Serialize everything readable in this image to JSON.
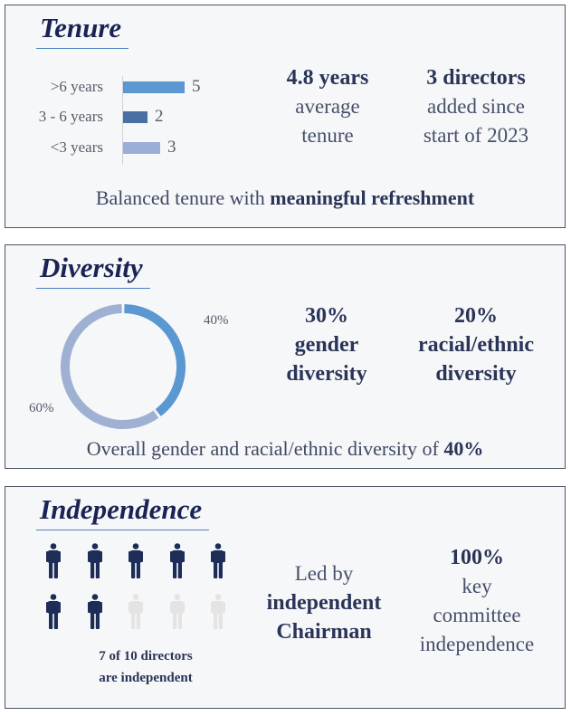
{
  "tenure": {
    "title": "Tenure",
    "chart_data": {
      "type": "bar",
      "orientation": "horizontal",
      "categories": [
        ">6 years",
        "3 - 6 years",
        "<3 years"
      ],
      "values": [
        5,
        2,
        3
      ],
      "colors": [
        "#5b97d1",
        "#4a6fa5",
        "#9aaed6"
      ]
    },
    "stat1": {
      "headline": "4.8 years",
      "line1": "average",
      "line2": "tenure"
    },
    "stat2": {
      "headline": "3 directors",
      "line1": "added since",
      "line2": "start of 2023"
    },
    "caption": {
      "text": "Balanced tenure with ",
      "bold": "meaningful refreshment"
    }
  },
  "diversity": {
    "title": "Diversity",
    "chart_data": {
      "type": "pie",
      "style": "donut",
      "labels": [
        "40%",
        "60%"
      ],
      "values": [
        40,
        60
      ],
      "colors": [
        "#5b97d1",
        "#9fb1d3"
      ]
    },
    "stat1": {
      "line1": "30%",
      "line2": "gender",
      "line3": "diversity"
    },
    "stat2": {
      "line1": "20%",
      "line2": "racial/ethnic",
      "line3": "diversity"
    },
    "caption": {
      "text": "Overall gender and racial/ethnic diversity of ",
      "bold": "40%"
    }
  },
  "independence": {
    "title": "Independence",
    "independent_count": 7,
    "total_count": 10,
    "person_color": "#1e2d58",
    "person_faded_color": "#e4e4e4",
    "caption_line1": "7 of 10 directors",
    "caption_line2": "are independent",
    "stat1": {
      "line1": "Led by",
      "line2": "independent",
      "line3": "Chairman"
    },
    "stat2": {
      "line1": "100%",
      "line2": "key",
      "line3": "committee",
      "line4": "independence"
    }
  }
}
